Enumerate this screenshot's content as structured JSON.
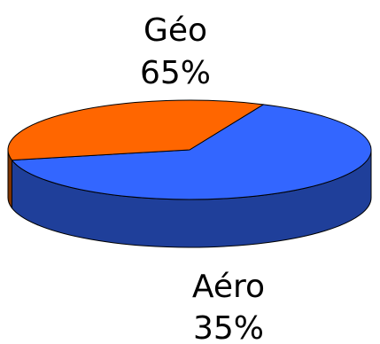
{
  "chart_data": {
    "type": "pie",
    "style": "3d",
    "slices": [
      {
        "label": "Géo",
        "value": 65,
        "value_label": "65%",
        "top_color": "#3366FF",
        "side_color": "#1F3F9A"
      },
      {
        "label": "Aéro",
        "value": 35,
        "value_label": "35%",
        "top_color": "#FF6600",
        "side_color": "#7F3300"
      }
    ],
    "title": "",
    "legend": "none",
    "edge_color": "#000000"
  }
}
